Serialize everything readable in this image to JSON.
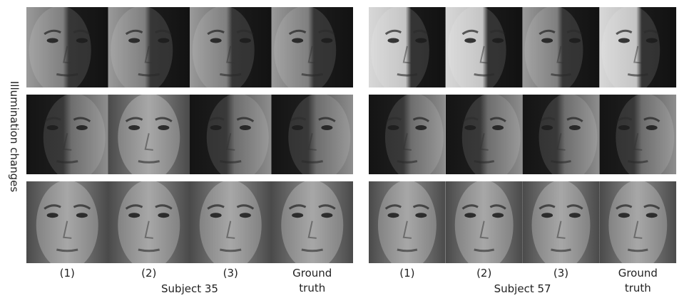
{
  "side_label": "Illumination changes",
  "panels": [
    {
      "subject": "Subject 35",
      "columns": [
        "(1)",
        "(2)",
        "(3)"
      ],
      "ground_truth": [
        "Ground",
        "truth"
      ]
    },
    {
      "subject": "Subject 57",
      "columns": [
        "(1)",
        "(2)",
        "(3)"
      ],
      "ground_truth": [
        "Ground",
        "truth"
      ]
    }
  ]
}
